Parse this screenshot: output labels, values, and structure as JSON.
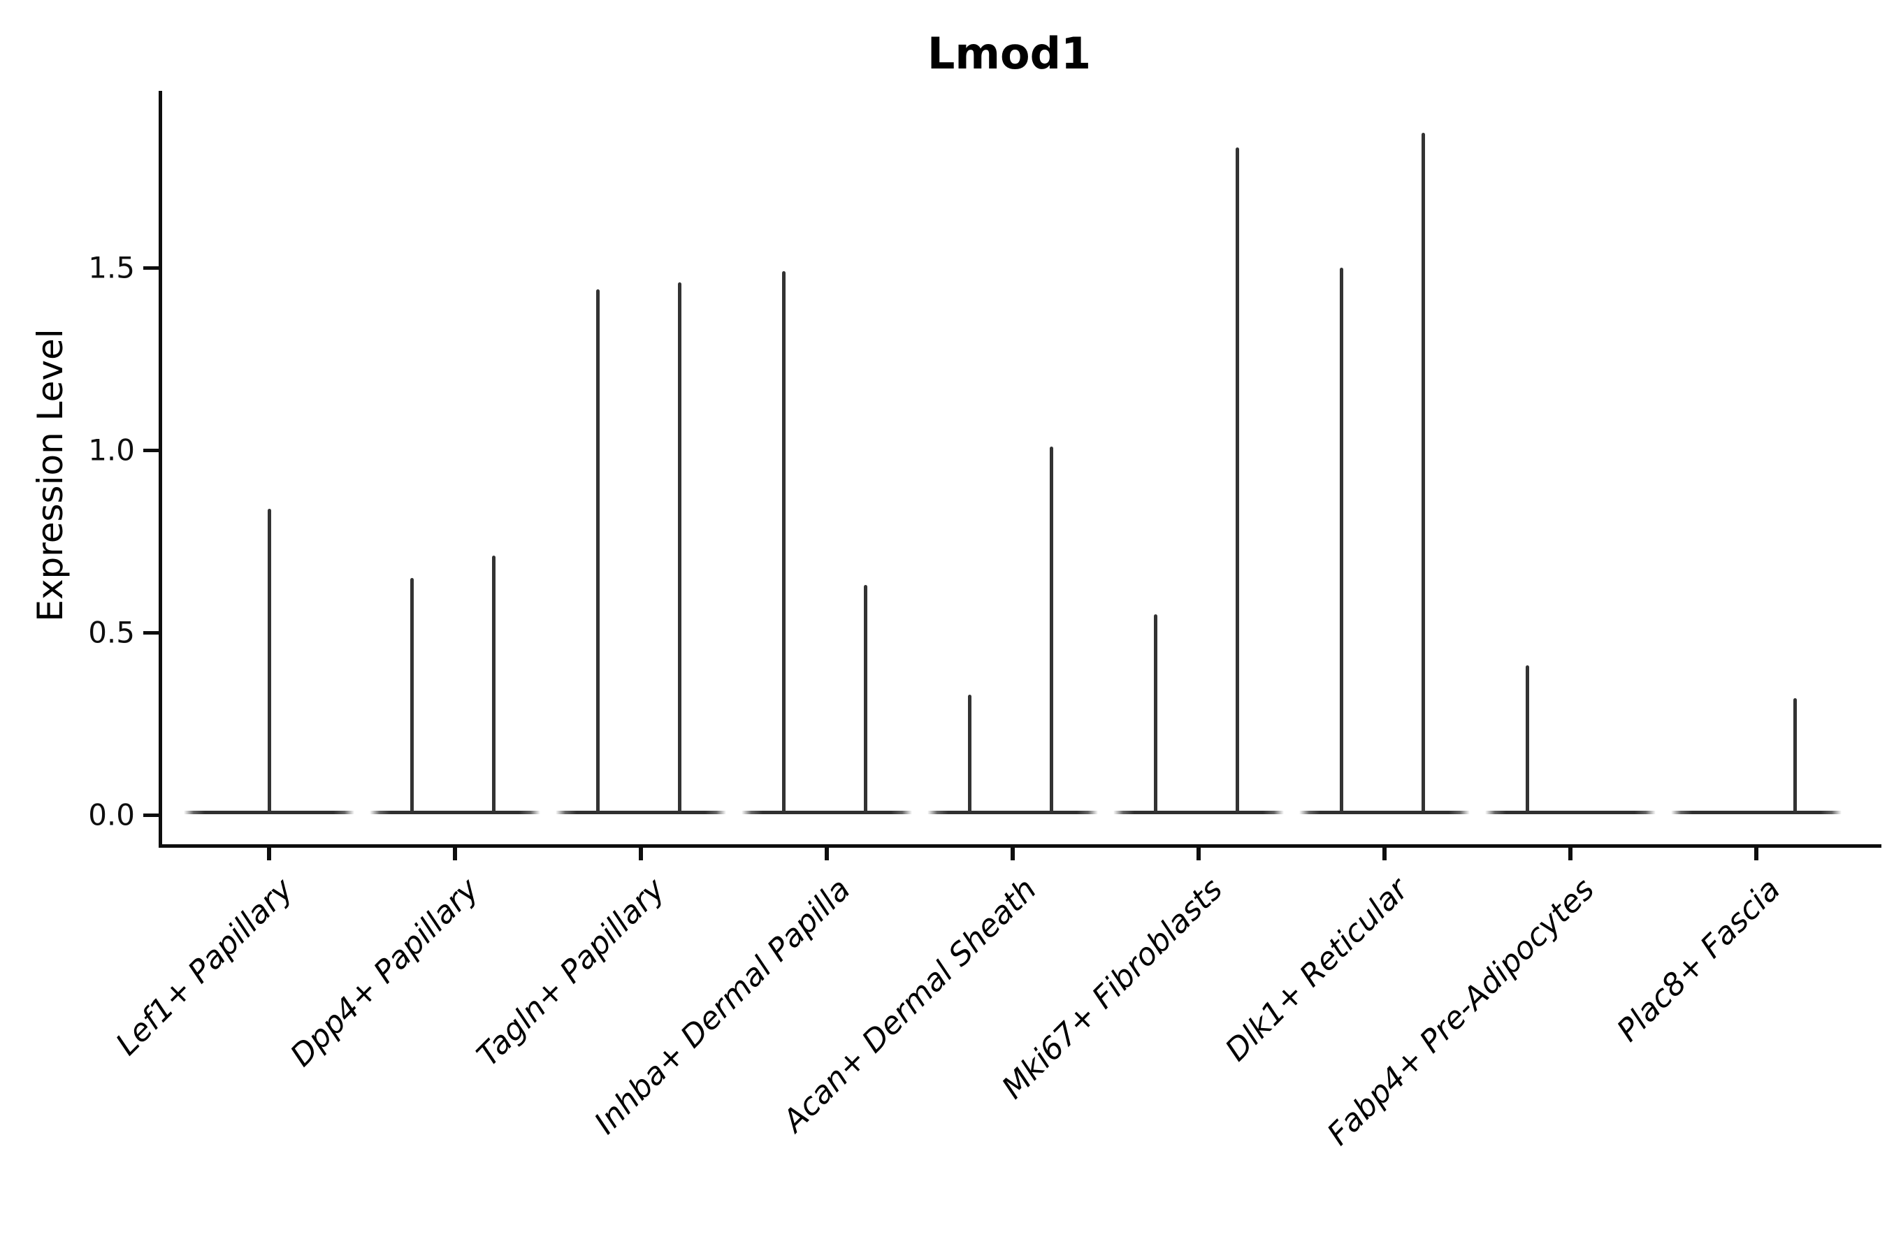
{
  "figure": {
    "title": "Lmod1",
    "background_color": "#ffffff",
    "line_color": "#333333",
    "axis_color": "#0e0e0e"
  },
  "y_axis": {
    "label": "Expression Level",
    "tick_labels": [
      "0.0",
      "0.5",
      "1.0",
      "1.5"
    ],
    "tick_values": [
      0.0,
      0.5,
      1.0,
      1.5
    ]
  },
  "x_axis": {
    "tick_labels": [
      "Lef1+ Papillary",
      "Dpp4+ Papillary",
      "Tagln+ Papillary",
      "Inhba+ Dermal Papilla",
      "Acan+ Dermal Sheath",
      "Mki67+ Fibroblasts",
      "Dlk1+ Reticular",
      "Fabp4+ Pre-Adipocytes",
      "Plac8+ Fascia"
    ]
  },
  "chart_data": {
    "type": "violin",
    "title": "Lmod1",
    "xlabel": "",
    "ylabel": "Expression Level",
    "ylim": [
      -0.09,
      1.98
    ],
    "yticks": [
      0.0,
      0.5,
      1.0,
      1.5
    ],
    "grid": false,
    "legend": "none",
    "description": "Zero-inflated expression violins: each violin is a wide flat base at 0 with thin vertical spike(s) rising to the maximum expression value. Categories 2-7 show a pair of spikes (left/right of center); categories 1, 8, 9 show a single spike.",
    "categories": [
      "Lef1+ Papillary",
      "Dpp4+ Papillary",
      "Tagln+ Papillary",
      "Inhba+ Dermal Papilla",
      "Acan+ Dermal Sheath",
      "Mki67+ Fibroblasts",
      "Dlk1+ Reticular",
      "Fabp4+ Pre-Adipocytes",
      "Plac8+ Fascia"
    ],
    "violins": [
      {
        "category": "Lef1+ Papillary",
        "baseline_value": 0.0,
        "spikes": [
          {
            "position": "center",
            "max_value": 0.84
          }
        ]
      },
      {
        "category": "Dpp4+ Papillary",
        "baseline_value": 0.0,
        "spikes": [
          {
            "position": "left",
            "max_value": 0.65
          },
          {
            "position": "right",
            "max_value": 0.71
          }
        ]
      },
      {
        "category": "Tagln+ Papillary",
        "baseline_value": 0.0,
        "spikes": [
          {
            "position": "left",
            "max_value": 1.44
          },
          {
            "position": "right",
            "max_value": 1.46
          }
        ]
      },
      {
        "category": "Inhba+ Dermal Papilla",
        "baseline_value": 0.0,
        "spikes": [
          {
            "position": "left",
            "max_value": 1.49
          },
          {
            "position": "right",
            "max_value": 0.63
          }
        ]
      },
      {
        "category": "Acan+ Dermal Sheath",
        "baseline_value": 0.0,
        "spikes": [
          {
            "position": "left",
            "max_value": 0.33
          },
          {
            "position": "right",
            "max_value": 1.01
          }
        ]
      },
      {
        "category": "Mki67+ Fibroblasts",
        "baseline_value": 0.0,
        "spikes": [
          {
            "position": "left",
            "max_value": 0.55
          },
          {
            "position": "right",
            "max_value": 1.83
          }
        ]
      },
      {
        "category": "Dlk1+ Reticular",
        "baseline_value": 0.0,
        "spikes": [
          {
            "position": "left",
            "max_value": 1.5
          },
          {
            "position": "right",
            "max_value": 1.87
          }
        ]
      },
      {
        "category": "Fabp4+ Pre-Adipocytes",
        "baseline_value": 0.0,
        "spikes": [
          {
            "position": "left",
            "max_value": 0.41
          }
        ]
      },
      {
        "category": "Plac8+ Fascia",
        "baseline_value": 0.0,
        "spikes": [
          {
            "position": "right",
            "max_value": 0.32
          }
        ]
      }
    ]
  }
}
